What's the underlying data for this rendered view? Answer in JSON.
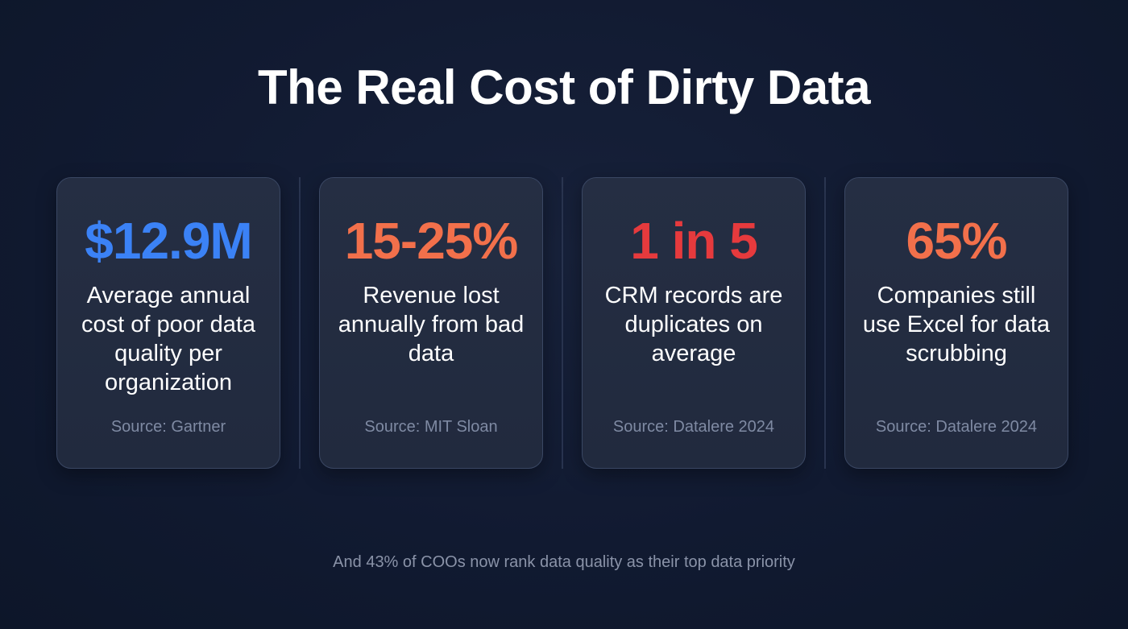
{
  "title": "The Real Cost of Dirty Data",
  "cards": [
    {
      "stat": "$12.9M",
      "color": "#3b82f6",
      "description": "Average annual cost of poor data quality per organization",
      "source": "Source: Gartner"
    },
    {
      "stat": "15-25%",
      "color": "#f2704b",
      "description": "Revenue lost annually from bad data",
      "source": "Source: MIT Sloan"
    },
    {
      "stat": "1 in 5",
      "color": "#e63a3d",
      "description": "CRM records are duplicates on average",
      "source": "Source: Datalere 2024"
    },
    {
      "stat": "65%",
      "color": "#f2704b",
      "description": "Companies still use Excel for data scrubbing",
      "source": "Source: Datalere 2024"
    }
  ],
  "footer": "And 43% of COOs now rank data quality as their top data priority"
}
